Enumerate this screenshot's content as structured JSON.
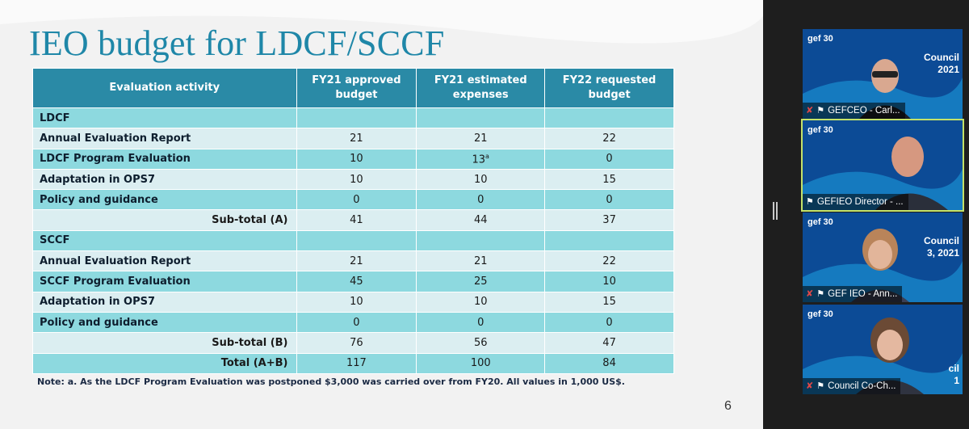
{
  "slide": {
    "title": "IEO budget for LDCF/SCCF",
    "page_number": "6",
    "note": "Note: a. As the LDCF Program Evaluation was postponed $3,000 was carried over from FY20. All values in 1,000 US$.",
    "footnote_marker": "a",
    "headers": {
      "activity": "Evaluation activity",
      "fy21_approved_l1": "FY21 approved",
      "fy21_approved_l2": "budget",
      "fy21_estimated_l1": "FY21 estimated",
      "fy21_estimated_l2": "expenses",
      "fy22_requested_l1": "FY22 requested",
      "fy22_requested_l2": "budget"
    },
    "ldcf": {
      "section": "LDCF",
      "rows": [
        {
          "activity": "Annual Evaluation Report",
          "fy21_approved": "21",
          "fy21_estimated": "21",
          "fy22_requested": "22"
        },
        {
          "activity": "LDCF Program Evaluation",
          "fy21_approved": "10",
          "fy21_estimated": "13",
          "fy22_requested": "0"
        },
        {
          "activity": "Adaptation in OPS7",
          "fy21_approved": "10",
          "fy21_estimated": "10",
          "fy22_requested": "15"
        },
        {
          "activity": "Policy and guidance",
          "fy21_approved": "0",
          "fy21_estimated": "0",
          "fy22_requested": "0"
        }
      ],
      "subtotal": {
        "label": "Sub-total (A)",
        "fy21_approved": "41",
        "fy21_estimated": "44",
        "fy22_requested": "37"
      }
    },
    "sccf": {
      "section": "SCCF",
      "rows": [
        {
          "activity": "Annual Evaluation Report",
          "fy21_approved": "21",
          "fy21_estimated": "21",
          "fy22_requested": "22"
        },
        {
          "activity": "SCCF Program Evaluation",
          "fy21_approved": "45",
          "fy21_estimated": "25",
          "fy22_requested": "10"
        },
        {
          "activity": "Adaptation in OPS7",
          "fy21_approved": "10",
          "fy21_estimated": "10",
          "fy22_requested": "15"
        },
        {
          "activity": "Policy and guidance",
          "fy21_approved": "0",
          "fy21_estimated": "0",
          "fy22_requested": "0"
        }
      ],
      "subtotal": {
        "label": "Sub-total (B)",
        "fy21_approved": "76",
        "fy21_estimated": "56",
        "fy22_requested": "47"
      }
    },
    "total": {
      "label": "Total (A+B)",
      "fy21_approved": "117",
      "fy21_estimated": "100",
      "fy22_requested": "84"
    }
  },
  "participants": [
    {
      "name": "GEFCEO - Carl...",
      "muted": true,
      "logo": "gef 30",
      "council_l1": "Council",
      "council_l2": "2021"
    },
    {
      "name": "GEFIEO Director - ...",
      "muted": false,
      "logo": "gef 30",
      "council_l1": "",
      "council_l2": ""
    },
    {
      "name": "GEF IEO - Ann...",
      "muted": true,
      "logo": "gef 30",
      "council_l1": "Council",
      "council_l2": "3, 2021"
    },
    {
      "name": "Council Co-Ch...",
      "muted": true,
      "logo": "gef 30",
      "council_l1": "cil",
      "council_l2": "1"
    }
  ],
  "colors": {
    "title": "#1f87a8",
    "header": "#2a8aa6",
    "row_teal": "#8dd9df",
    "row_light": "#dbeef1",
    "active_speaker": "#c4e36a"
  }
}
